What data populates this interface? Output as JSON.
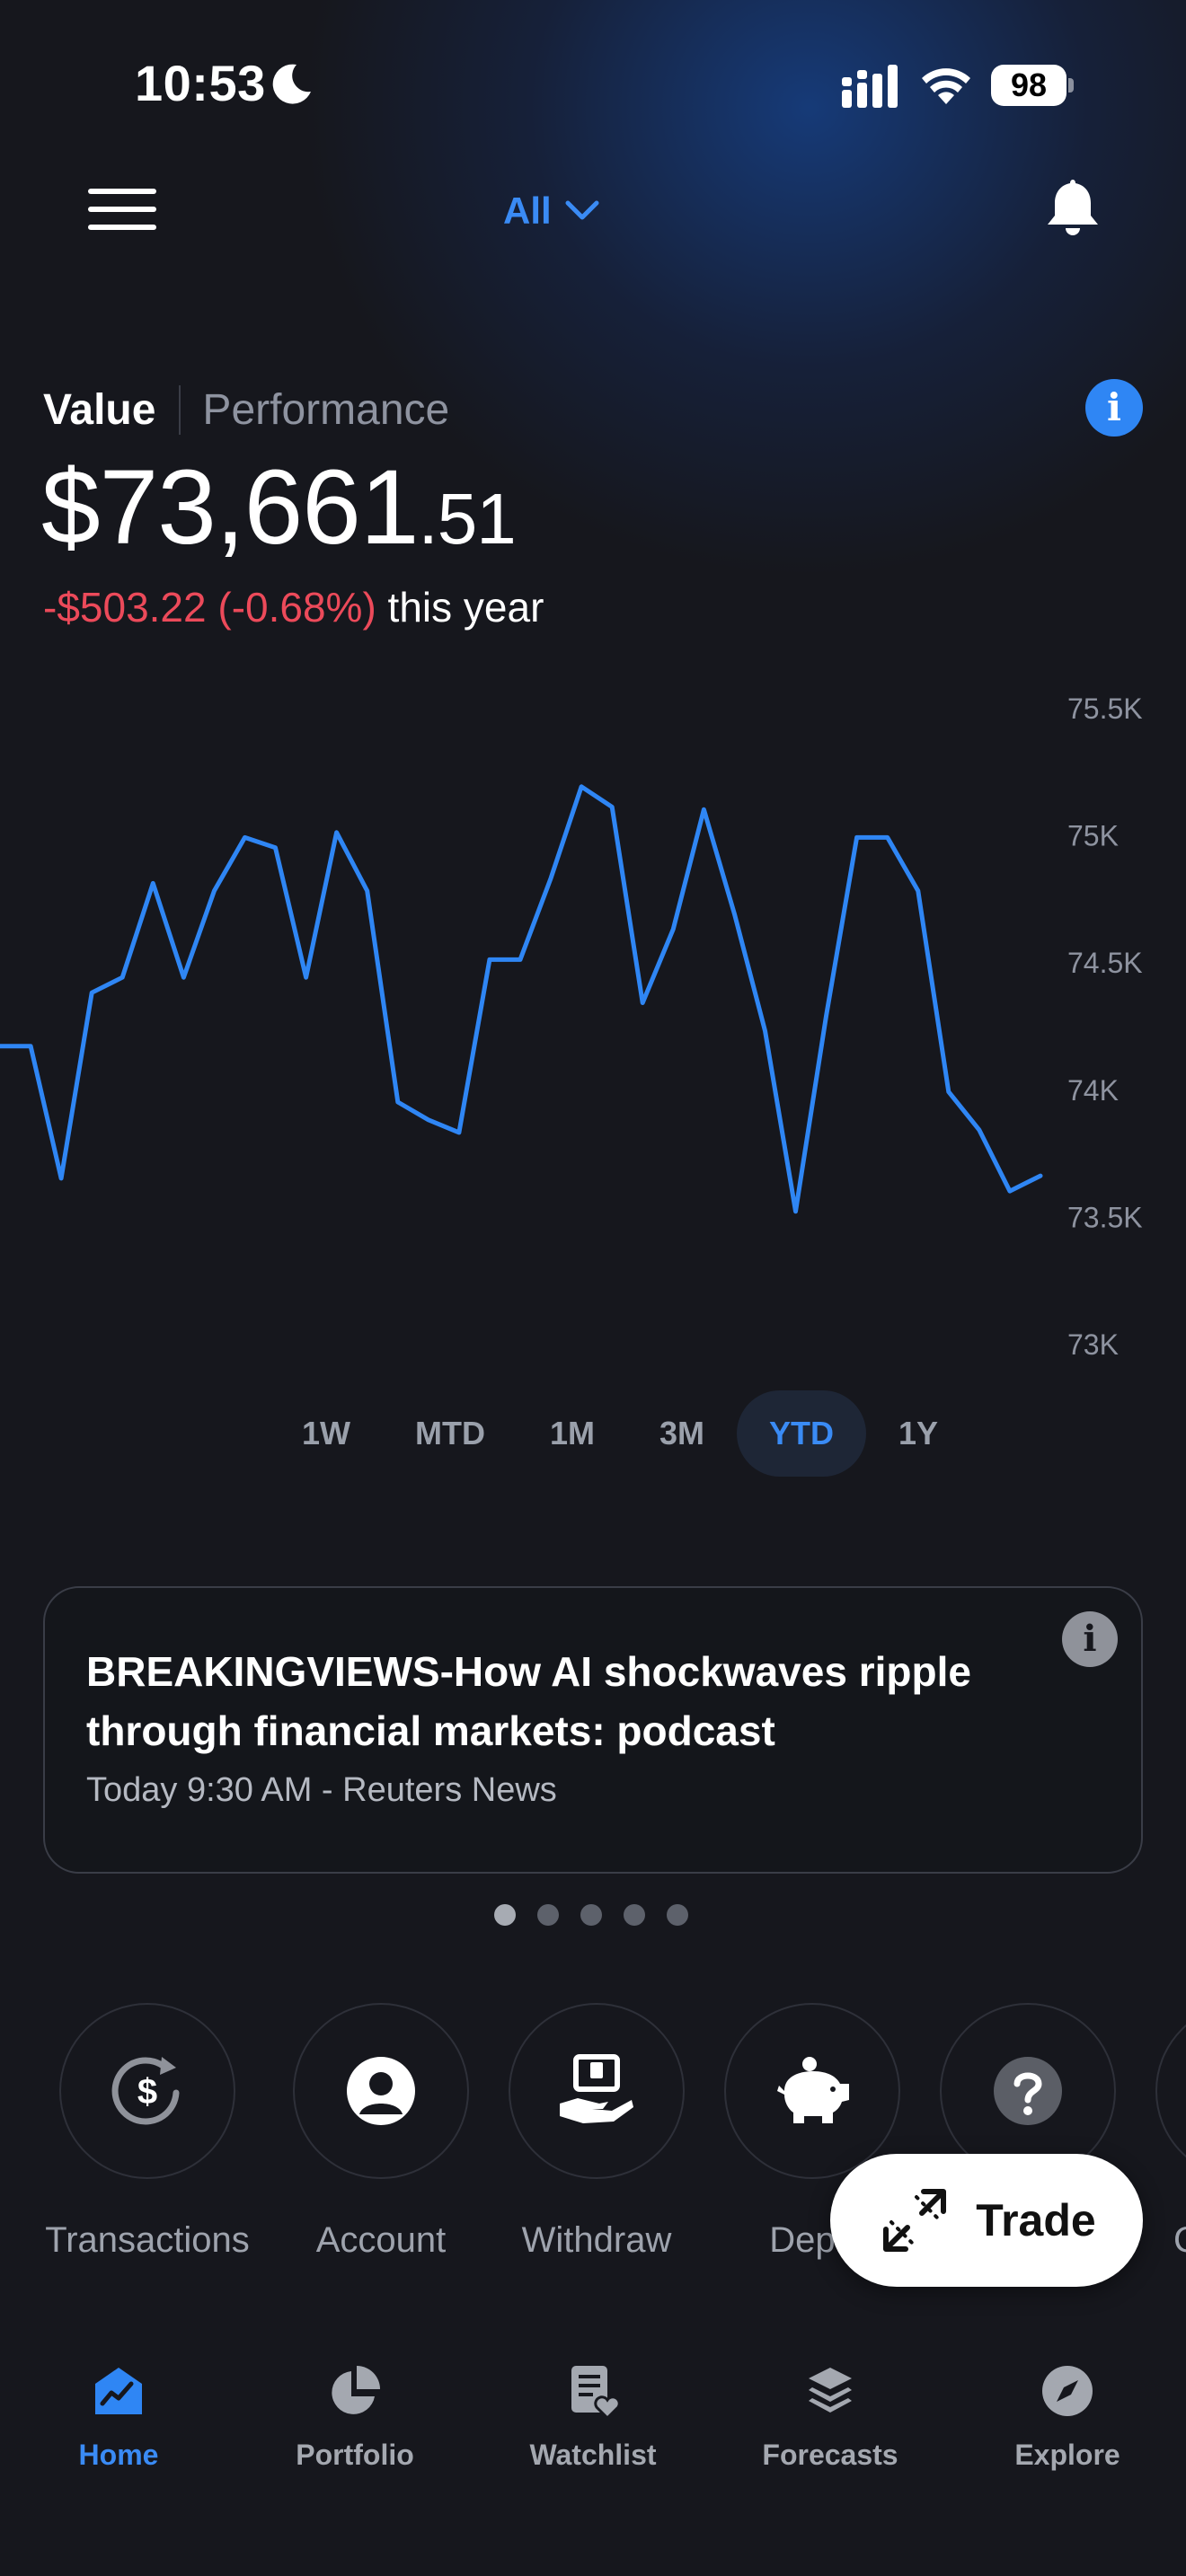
{
  "status_bar": {
    "time": "10:53",
    "battery": "98"
  },
  "header": {
    "account_filter": "All"
  },
  "summary": {
    "tab_value": "Value",
    "tab_performance": "Performance",
    "balance_whole": "$73,661",
    "balance_cents": ".51",
    "change_amount": "-$503.22 (-0.68%)",
    "change_period": "this year"
  },
  "chart_data": {
    "type": "line",
    "ylabel": "",
    "y_ticks": [
      "75.5K",
      "75K",
      "74.5K",
      "74K",
      "73.5K",
      "73K"
    ],
    "ylim": [
      73000,
      75500
    ],
    "series": [
      {
        "values": [
          74170,
          74170,
          73650,
          74380,
          74440,
          74810,
          74440,
          74780,
          74990,
          74950,
          74440,
          75010,
          74780,
          73950,
          73880,
          73830,
          74510,
          74510,
          74830,
          75190,
          75110,
          74340,
          74630,
          75100,
          74690,
          74230,
          73520,
          74290,
          74990,
          74990,
          74780,
          73990,
          73840,
          73600,
          73660
        ]
      }
    ],
    "color": "#2f86f4"
  },
  "ranges": [
    "1W",
    "MTD",
    "1M",
    "3M",
    "YTD",
    "1Y"
  ],
  "active_range": "YTD",
  "news": {
    "title": "BREAKINGVIEWS-How AI shockwaves ripple through financial markets: podcast",
    "meta": "Today 9:30 AM - Reuters News",
    "page_count": 5,
    "active_page": 1
  },
  "quick_actions": {
    "transactions": "Transactions",
    "account": "Account",
    "withdraw": "Withdraw",
    "deposit": "Depo",
    "help": "",
    "more": "C"
  },
  "trade_button": "Trade",
  "bottom_nav": {
    "home": "Home",
    "portfolio": "Portfolio",
    "watchlist": "Watchlist",
    "forecasts": "Forecasts",
    "explore": "Explore"
  },
  "colors": {
    "accent": "#3a8bf5",
    "negative": "#ec4a5a",
    "background": "#16171d"
  }
}
